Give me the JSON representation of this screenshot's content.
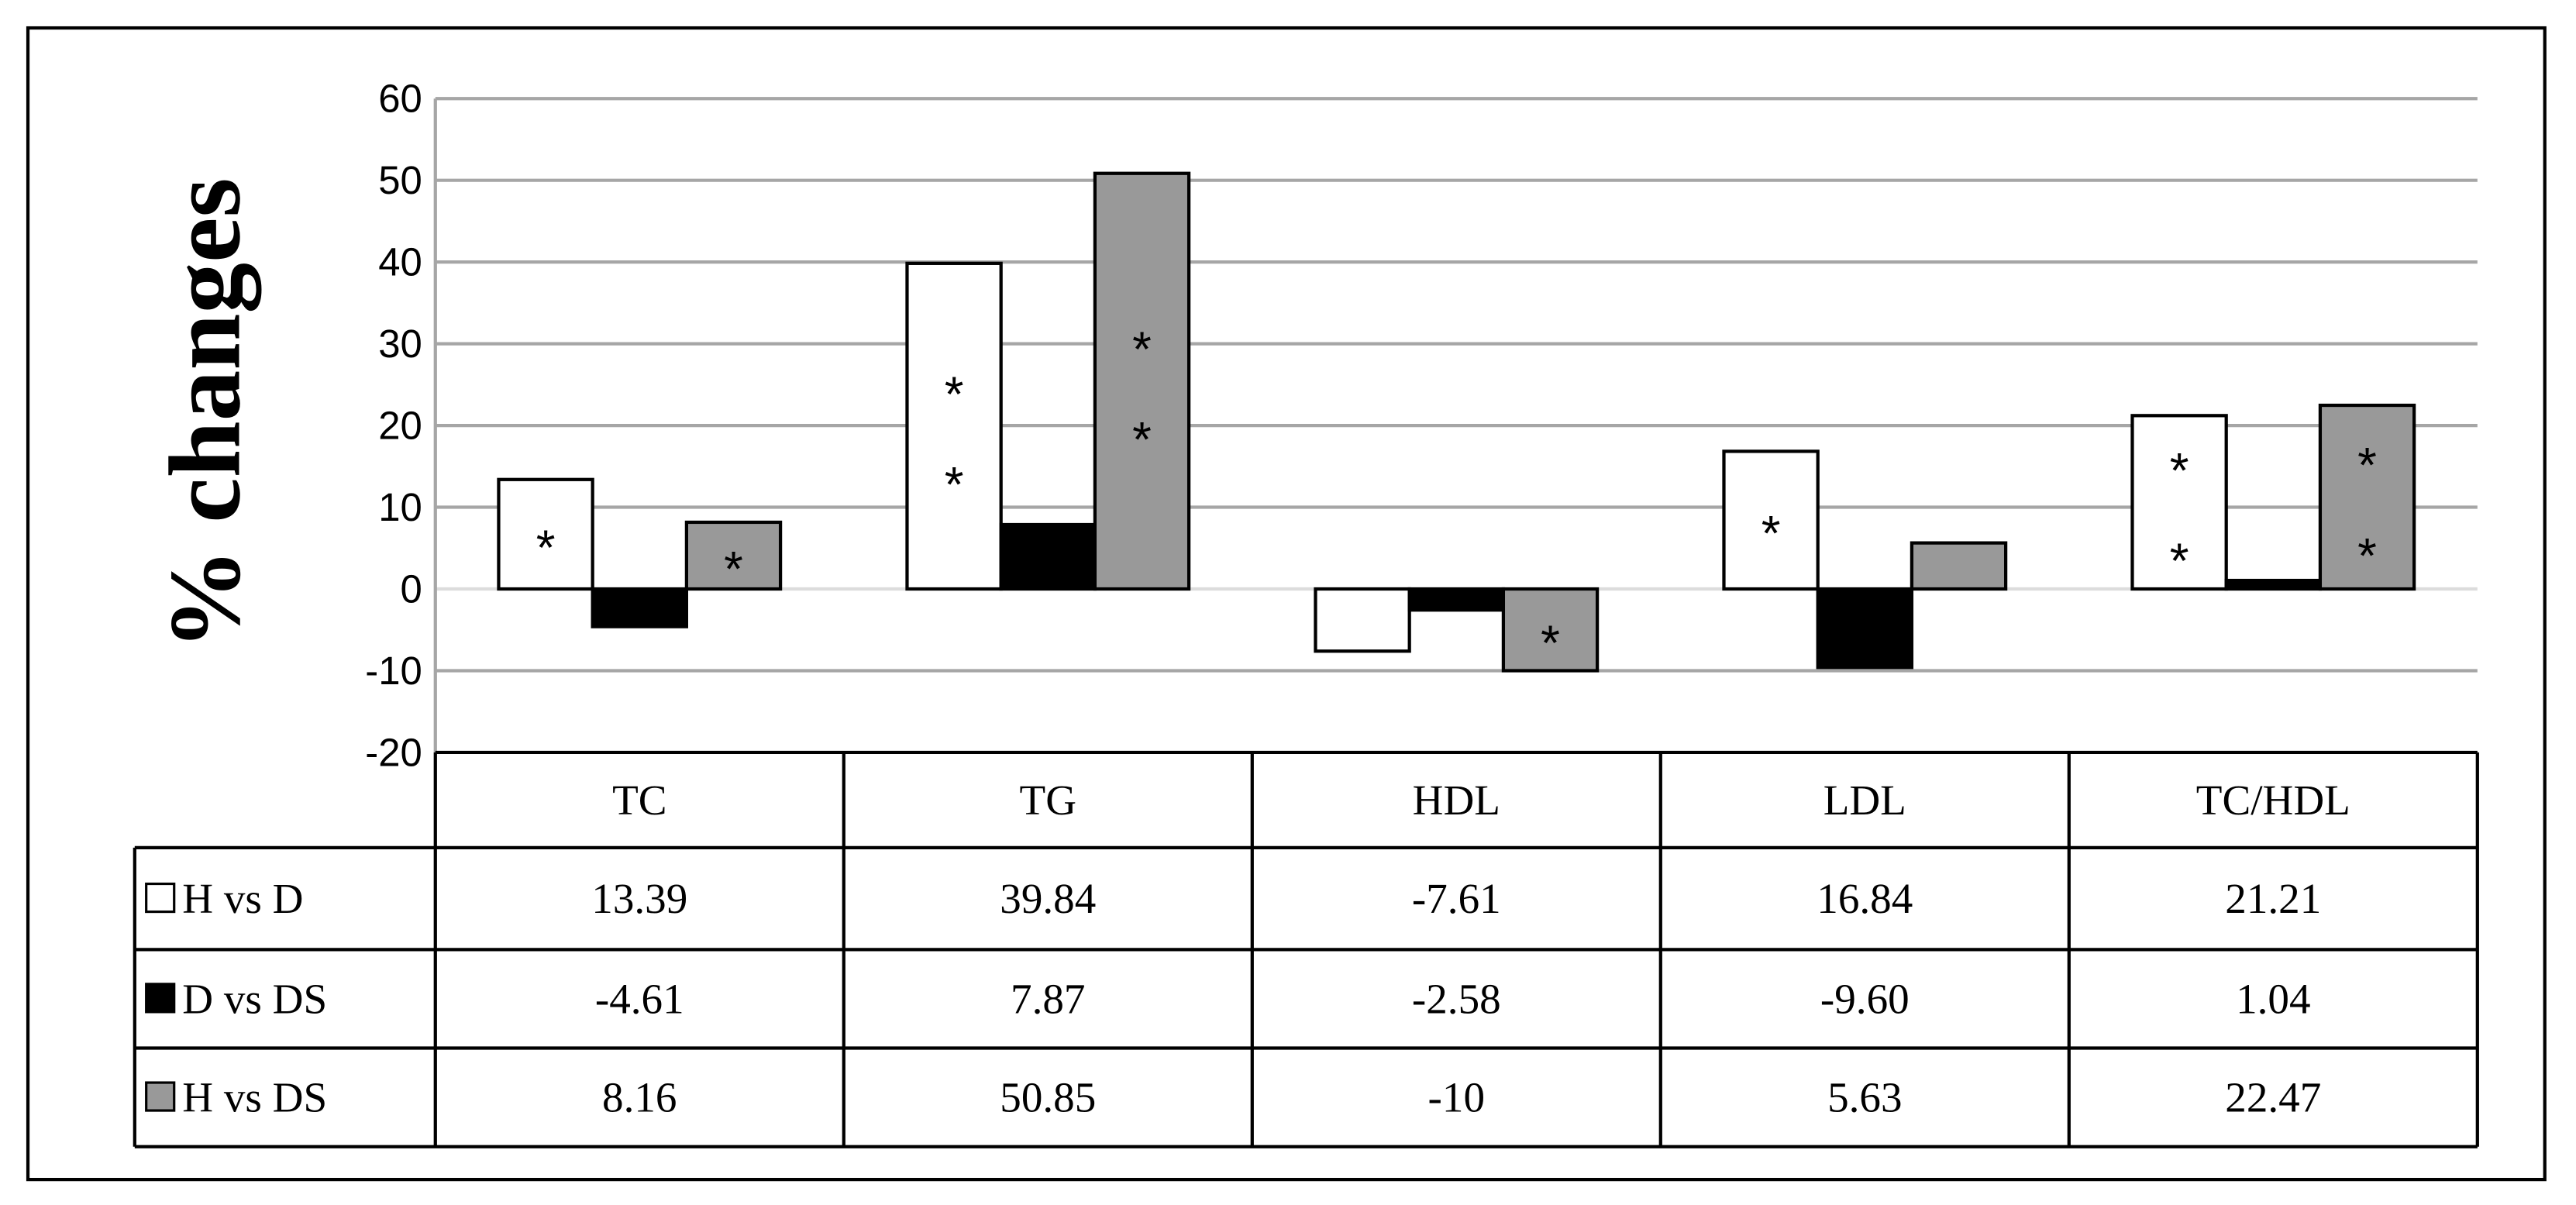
{
  "chart_data": {
    "type": "bar",
    "y_label": "% changes",
    "categories": [
      "TC",
      "TG",
      "HDL",
      "LDL",
      "TC/HDL"
    ],
    "series": [
      {
        "name": "H vs D",
        "color": "#ffffff",
        "values": [
          13.39,
          39.84,
          -7.61,
          16.84,
          21.21
        ],
        "value_labels": [
          "13.39",
          "39.84",
          "-7.61",
          "16.84",
          "21.21"
        ],
        "significance": [
          "*",
          "**",
          null,
          "*",
          "**"
        ]
      },
      {
        "name": "D vs DS",
        "color": "#000000",
        "values": [
          -4.61,
          7.87,
          -2.58,
          -9.6,
          1.04
        ],
        "value_labels": [
          "-4.61",
          "7.87",
          "-2.58",
          "-9.60",
          "1.04"
        ]
      },
      {
        "name": "H vs DS",
        "color": "#999999",
        "values": [
          8.16,
          50.85,
          -10,
          5.63,
          22.47
        ],
        "value_labels": [
          "8.16",
          "50.85",
          "-10",
          "5.63",
          "22.47"
        ],
        "significance": [
          "*",
          "**",
          "*",
          null,
          "**"
        ]
      }
    ],
    "ylim": [
      -20,
      60
    ],
    "yticks": [
      -20,
      -10,
      0,
      10,
      20,
      30,
      40,
      50,
      60
    ],
    "grid": true
  }
}
